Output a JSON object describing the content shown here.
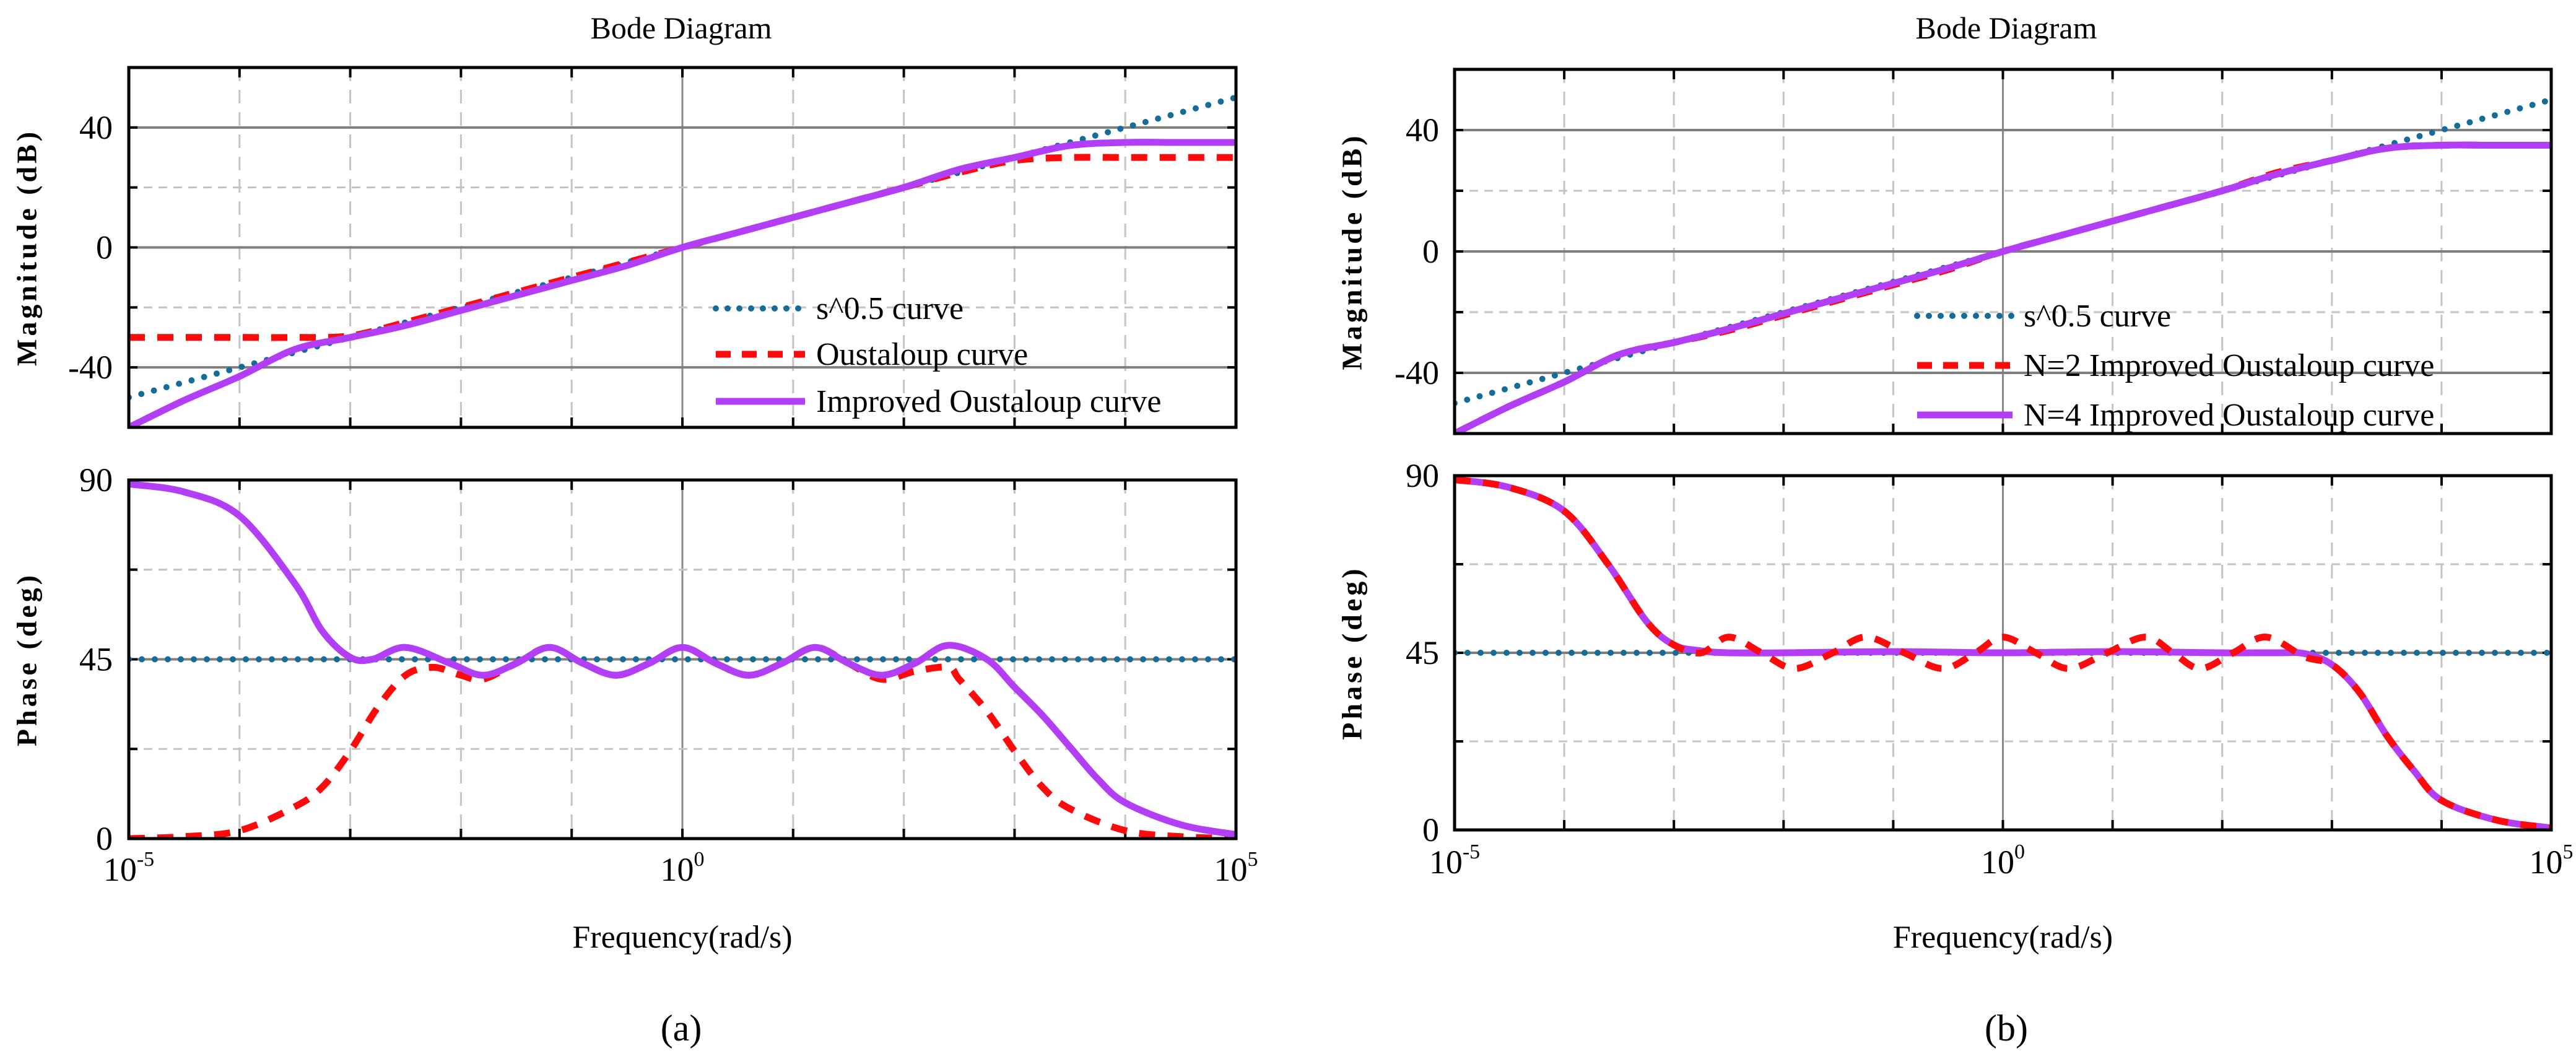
{
  "colors": {
    "s05": "#146c9a",
    "oustaloup": "#ff0a0a",
    "improved": "#b23ef7"
  },
  "chart_data": [
    {
      "type": "line",
      "panel_label": "(a)",
      "title": "Bode Diagram",
      "xlabel": "Frequency(rad/s)",
      "xscale": "log",
      "xlim_log10": [
        -5,
        5
      ],
      "xticks": [
        {
          "base": "10",
          "exp": "-5"
        },
        {
          "base": "10",
          "exp": "0"
        },
        {
          "base": "10",
          "exp": "5"
        }
      ],
      "grid": true,
      "legend_position": "lower-right of magnitude plot",
      "magnitude": {
        "ylabel": "Magnitude (dB)",
        "ylim": [
          -60,
          60
        ],
        "yticks": [
          "40",
          "0",
          "-40"
        ],
        "ytick_values": [
          40,
          0,
          -40
        ],
        "series": [
          {
            "name": "s^0.5 curve",
            "style": "dotted",
            "color_key": "s05",
            "x_log10": [
              -5,
              5
            ],
            "y": [
              -50,
              50
            ]
          },
          {
            "name": "Oustaloup curve",
            "style": "dashed",
            "color_key": "oustaloup",
            "x_log10": [
              -5,
              -4.5,
              -4,
              -3.5,
              -3,
              -2.5,
              -2,
              -1.5,
              -1,
              -0.5,
              0,
              0.5,
              1,
              1.5,
              2,
              2.5,
              3,
              3.5,
              4,
              4.5,
              5
            ],
            "y": [
              -30,
              -30,
              -30,
              -30,
              -29.5,
              -25,
              -20,
              -15,
              -10,
              -5,
              0,
              5,
              10,
              15,
              20,
              25,
              29,
              30,
              30,
              30,
              30
            ]
          },
          {
            "name": "Improved Oustaloup curve",
            "style": "solid",
            "color_key": "improved",
            "x_log10": [
              -5,
              -4.5,
              -4,
              -3.5,
              -3,
              -2.5,
              -2,
              -1.5,
              -1,
              -0.5,
              0,
              0.5,
              1,
              1.5,
              2,
              2.5,
              3,
              3.5,
              4,
              4.5,
              5
            ],
            "y": [
              -60,
              -51,
              -43,
              -34,
              -30,
              -26,
              -21,
              -16,
              -11,
              -6,
              0,
              5,
              10,
              15,
              20,
              26,
              30,
              34,
              35,
              35,
              35
            ]
          }
        ]
      },
      "phase": {
        "ylabel": "Phase (deg)",
        "ylim": [
          0,
          90
        ],
        "yticks": [
          "90",
          "45",
          "0"
        ],
        "ytick_values": [
          90,
          45,
          0
        ],
        "series": [
          {
            "name": "s^0.5 curve",
            "style": "dotted",
            "color_key": "s05",
            "x_log10": [
              -5,
              5
            ],
            "y": [
              45,
              45
            ]
          },
          {
            "name": "Oustaloup curve",
            "style": "dashed",
            "color_key": "oustaloup",
            "x_log10": [
              -5,
              -4.5,
              -4,
              -3.5,
              -3.25,
              -3,
              -2.75,
              -2.5,
              -2.25,
              -2,
              -1.8,
              -1.5,
              -1.2,
              -0.9,
              -0.6,
              -0.3,
              0,
              0.3,
              0.6,
              0.9,
              1.2,
              1.5,
              1.8,
              2.1,
              2.4,
              2.5,
              2.75,
              3,
              3.25,
              3.5,
              4,
              4.5,
              5
            ],
            "y": [
              0,
              0.5,
              2,
              8,
              13,
              22,
              33,
              41,
              43,
              41,
              40,
              44,
              48,
              44,
              41,
              44,
              48,
              44,
              41,
              44,
              48,
              44,
              40,
              42,
              43,
              40,
              32,
              22,
              13,
              7.5,
              2,
              0.5,
              0
            ]
          },
          {
            "name": "Improved Oustaloup curve",
            "style": "solid",
            "color_key": "improved",
            "x_log10": [
              -5,
              -4.5,
              -4,
              -3.5,
              -3.25,
              -3,
              -2.8,
              -2.5,
              -2.1,
              -1.8,
              -1.5,
              -1.2,
              -0.9,
              -0.6,
              -0.3,
              0,
              0.3,
              0.6,
              0.9,
              1.2,
              1.5,
              1.8,
              2.1,
              2.4,
              2.75,
              3,
              3.25,
              3.5,
              3.75,
              4,
              4.5,
              5
            ],
            "y": [
              89,
              87,
              81,
              64,
              52,
              45.5,
              45,
              48,
              44,
              41,
              44,
              48,
              44,
              41,
              44,
              48,
              44,
              41,
              44,
              48,
              44,
              41,
              44,
              48.5,
              45,
              38,
              31,
              23,
              15,
              9,
              3.5,
              1
            ]
          }
        ]
      }
    },
    {
      "type": "line",
      "panel_label": "(b)",
      "title": "Bode Diagram",
      "xlabel": "Frequency(rad/s)",
      "xscale": "log",
      "xlim_log10": [
        -5,
        5
      ],
      "xticks": [
        {
          "base": "10",
          "exp": "-5"
        },
        {
          "base": "10",
          "exp": "0"
        },
        {
          "base": "10",
          "exp": "5"
        }
      ],
      "grid": true,
      "legend_position": "lower-right of magnitude plot",
      "magnitude": {
        "ylabel": "Magnitude (dB)",
        "ylim": [
          -60,
          60
        ],
        "yticks": [
          "40",
          "0",
          "-40"
        ],
        "ytick_values": [
          40,
          0,
          -40
        ],
        "series": [
          {
            "name": "s^0.5 curve",
            "style": "dotted",
            "color_key": "s05",
            "x_log10": [
              -5,
              5
            ],
            "y": [
              -50,
              50
            ]
          },
          {
            "name": "N=2 Improved Oustaloup curve",
            "style": "dashed",
            "color_key": "oustaloup",
            "x_log10": [
              -5,
              -4.5,
              -4,
              -3.5,
              -3,
              -2.5,
              -2,
              -1.5,
              -1,
              -0.5,
              0,
              0.5,
              1,
              1.5,
              2,
              2.5,
              3,
              3.5,
              4,
              4.5,
              5
            ],
            "y": [
              -60,
              -51,
              -43,
              -34,
              -30,
              -26,
              -21,
              -16,
              -11,
              -6,
              0,
              5,
              10,
              15,
              20,
              26,
              30,
              34,
              35,
              35,
              35
            ]
          },
          {
            "name": "N=4 Improved Oustaloup curve",
            "style": "solid",
            "color_key": "improved",
            "x_log10": [
              -5,
              -4.5,
              -4,
              -3.5,
              -3,
              -2.5,
              -2,
              -1.5,
              -1,
              -0.5,
              0,
              0.5,
              1,
              1.5,
              2,
              2.5,
              3,
              3.5,
              4,
              4.5,
              5
            ],
            "y": [
              -60,
              -51,
              -43,
              -34,
              -30,
              -25.5,
              -20.5,
              -15.5,
              -10.5,
              -5.5,
              0,
              5,
              10,
              15,
              20,
              25.5,
              30,
              34,
              35,
              35,
              35
            ]
          }
        ]
      },
      "phase": {
        "ylabel": "Phase (deg)",
        "ylim": [
          0,
          90
        ],
        "yticks": [
          "90",
          "45",
          "0"
        ],
        "ytick_values": [
          90,
          45,
          0
        ],
        "series": [
          {
            "name": "s^0.5 curve",
            "style": "dotted",
            "color_key": "s05",
            "x_log10": [
              -5,
              5
            ],
            "y": [
              45,
              45
            ]
          },
          {
            "name": "N=4 Improved Oustaloup curve",
            "style": "solid",
            "color_key": "improved",
            "x_log10": [
              -5,
              -4.5,
              -4,
              -3.6,
              -3.25,
              -3,
              -2.75,
              -2.5,
              -2,
              -1,
              0,
              1,
              2,
              2.5,
              2.75,
              3,
              3.25,
              3.5,
              3.75,
              4,
              4.5,
              5
            ],
            "y": [
              89,
              87,
              81,
              67.5,
              53,
              47,
              45.5,
              45,
              45,
              45.3,
              45,
              45.3,
              45,
              45,
              44.8,
              42,
              35,
              24,
              15,
              7.5,
              2.5,
              0.5
            ]
          },
          {
            "name": "N=2 Improved Oustaloup curve",
            "style": "dashed",
            "color_key": "oustaloup",
            "x_log10": [
              -5,
              -4.5,
              -4,
              -3.6,
              -3.25,
              -3,
              -2.75,
              -2.5,
              -2.2,
              -1.9,
              -1.55,
              -1.25,
              -0.9,
              -0.55,
              -0.25,
              0,
              0.3,
              0.6,
              0.95,
              1.3,
              1.55,
              1.8,
              2.1,
              2.4,
              2.75,
              3,
              3.25,
              3.5,
              3.75,
              4,
              4.5,
              5
            ],
            "y": [
              89,
              87,
              81,
              67.5,
              53,
              47,
              45,
              49,
              45,
              41,
              45,
              49,
              45,
              41,
              45,
              49,
              45,
              41,
              45,
              49,
              45,
              41,
              45,
              49,
              44,
              42,
              35,
              24,
              15,
              7.5,
              2.5,
              0.5
            ]
          }
        ]
      }
    }
  ]
}
